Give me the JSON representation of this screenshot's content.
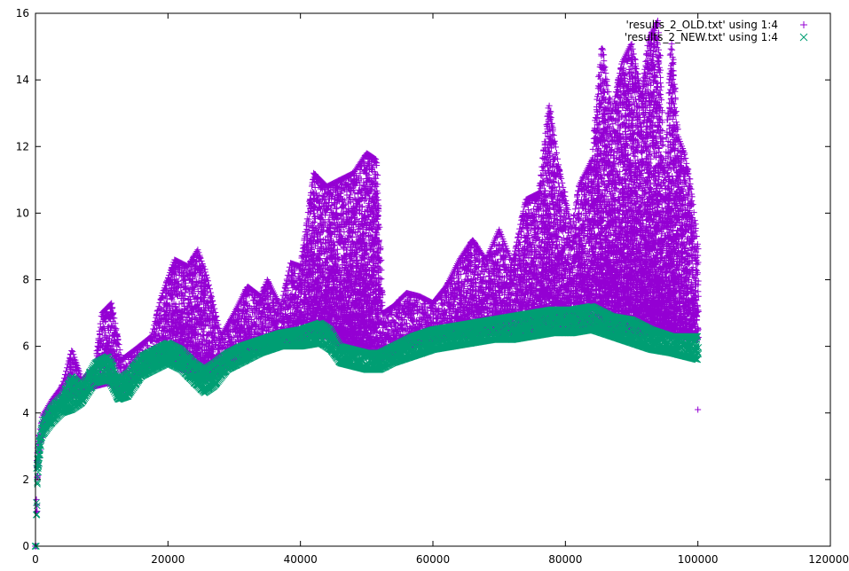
{
  "chart_data": {
    "type": "scatter",
    "title": "",
    "xlabel": "",
    "ylabel": "",
    "xlim": [
      0,
      120000
    ],
    "ylim": [
      0,
      16
    ],
    "x_ticks": [
      0,
      20000,
      40000,
      60000,
      80000,
      100000,
      120000
    ],
    "x_tick_labels": [
      "0",
      "20000",
      "40000",
      "60000",
      "80000",
      "100000",
      "120000"
    ],
    "y_ticks": [
      0,
      2,
      4,
      6,
      8,
      10,
      12,
      14,
      16
    ],
    "y_tick_labels": [
      "0",
      "2",
      "4",
      "6",
      "8",
      "10",
      "12",
      "14",
      "16"
    ],
    "grid": false,
    "legend_position": "top-right",
    "series": [
      {
        "name": "'results_2_OLD.txt' using 1:4",
        "marker": "plus",
        "color": "#9400d3",
        "low_envelope": [
          [
            0,
            0
          ],
          [
            300,
            2.2
          ],
          [
            1000,
            3.4
          ],
          [
            2500,
            4.0
          ],
          [
            4000,
            4.3
          ],
          [
            5500,
            4.5
          ],
          [
            7000,
            4.6
          ],
          [
            9000,
            4.8
          ],
          [
            11000,
            4.9
          ],
          [
            13000,
            4.6
          ],
          [
            15000,
            5.1
          ],
          [
            17500,
            5.5
          ],
          [
            20000,
            5.6
          ],
          [
            22000,
            5.3
          ],
          [
            24000,
            5.2
          ],
          [
            26000,
            5.0
          ],
          [
            28000,
            5.3
          ],
          [
            30000,
            5.6
          ],
          [
            33000,
            5.9
          ],
          [
            36000,
            6.0
          ],
          [
            39000,
            6.2
          ],
          [
            42000,
            6.3
          ],
          [
            44000,
            6.3
          ],
          [
            46000,
            6.0
          ],
          [
            48000,
            6.0
          ],
          [
            50000,
            5.8
          ],
          [
            52000,
            5.6
          ],
          [
            55000,
            5.9
          ],
          [
            58000,
            6.1
          ],
          [
            61000,
            6.2
          ],
          [
            64000,
            6.3
          ],
          [
            67000,
            6.4
          ],
          [
            70000,
            6.4
          ],
          [
            73000,
            6.4
          ],
          [
            76000,
            6.4
          ],
          [
            79000,
            6.5
          ],
          [
            82000,
            6.5
          ],
          [
            85000,
            6.5
          ],
          [
            88000,
            6.4
          ],
          [
            91000,
            6.4
          ],
          [
            94000,
            6.4
          ],
          [
            97000,
            6.3
          ],
          [
            100000,
            6.2
          ]
        ],
        "high_envelope": [
          [
            0,
            0
          ],
          [
            300,
            3.0
          ],
          [
            1000,
            3.9
          ],
          [
            2500,
            4.4
          ],
          [
            4000,
            4.8
          ],
          [
            5500,
            5.9
          ],
          [
            7000,
            5.0
          ],
          [
            9000,
            5.4
          ],
          [
            10000,
            7.0
          ],
          [
            11500,
            7.3
          ],
          [
            13000,
            5.6
          ],
          [
            15000,
            5.9
          ],
          [
            17500,
            6.3
          ],
          [
            19000,
            7.5
          ],
          [
            21000,
            8.6
          ],
          [
            23000,
            8.4
          ],
          [
            24500,
            8.9
          ],
          [
            26000,
            8.0
          ],
          [
            28000,
            6.3
          ],
          [
            30000,
            7.0
          ],
          [
            32000,
            7.8
          ],
          [
            34000,
            7.5
          ],
          [
            35000,
            8.0
          ],
          [
            37000,
            7.2
          ],
          [
            38500,
            8.5
          ],
          [
            40000,
            8.4
          ],
          [
            42000,
            11.2
          ],
          [
            44000,
            10.8
          ],
          [
            46000,
            11.0
          ],
          [
            48000,
            11.2
          ],
          [
            50000,
            11.8
          ],
          [
            51500,
            11.6
          ],
          [
            52500,
            7.0
          ],
          [
            54000,
            7.2
          ],
          [
            56000,
            7.6
          ],
          [
            58000,
            7.5
          ],
          [
            60000,
            7.3
          ],
          [
            62000,
            7.8
          ],
          [
            64000,
            8.6
          ],
          [
            66000,
            9.2
          ],
          [
            68000,
            8.6
          ],
          [
            70000,
            9.5
          ],
          [
            72000,
            8.5
          ],
          [
            74000,
            10.4
          ],
          [
            76000,
            10.6
          ],
          [
            77500,
            13.3
          ],
          [
            79000,
            11.4
          ],
          [
            81000,
            9.5
          ],
          [
            82000,
            10.8
          ],
          [
            84000,
            11.6
          ],
          [
            85500,
            15.0
          ],
          [
            87000,
            13.0
          ],
          [
            88500,
            14.5
          ],
          [
            90000,
            15.1
          ],
          [
            91500,
            13.5
          ],
          [
            92500,
            15.2
          ],
          [
            94000,
            15.8
          ],
          [
            95000,
            11.0
          ],
          [
            96000,
            15.2
          ],
          [
            97000,
            12.3
          ],
          [
            98000,
            11.8
          ],
          [
            99000,
            10.7
          ],
          [
            100000,
            9.0
          ]
        ],
        "outlier_points": [
          [
            100000,
            4.1
          ]
        ]
      },
      {
        "name": "'results_2_NEW.txt' using 1:4",
        "marker": "cross",
        "color": "#009e73",
        "low_envelope": [
          [
            0,
            0
          ],
          [
            300,
            2.0
          ],
          [
            1000,
            3.3
          ],
          [
            2500,
            3.7
          ],
          [
            4000,
            4.0
          ],
          [
            5500,
            4.1
          ],
          [
            7000,
            4.3
          ],
          [
            9000,
            4.9
          ],
          [
            11000,
            5.0
          ],
          [
            12500,
            4.4
          ],
          [
            14000,
            4.5
          ],
          [
            16000,
            5.1
          ],
          [
            18000,
            5.3
          ],
          [
            20000,
            5.5
          ],
          [
            22000,
            5.3
          ],
          [
            24000,
            4.9
          ],
          [
            25500,
            4.6
          ],
          [
            27000,
            4.8
          ],
          [
            29000,
            5.3
          ],
          [
            31000,
            5.5
          ],
          [
            34000,
            5.8
          ],
          [
            37000,
            6.0
          ],
          [
            40000,
            6.0
          ],
          [
            43000,
            6.1
          ],
          [
            44500,
            5.9
          ],
          [
            46000,
            5.5
          ],
          [
            48000,
            5.4
          ],
          [
            50000,
            5.3
          ],
          [
            52000,
            5.3
          ],
          [
            54000,
            5.5
          ],
          [
            57000,
            5.7
          ],
          [
            60000,
            5.9
          ],
          [
            63000,
            6.0
          ],
          [
            66000,
            6.1
          ],
          [
            69000,
            6.2
          ],
          [
            72000,
            6.2
          ],
          [
            75000,
            6.3
          ],
          [
            78000,
            6.4
          ],
          [
            81000,
            6.4
          ],
          [
            84000,
            6.5
          ],
          [
            87000,
            6.3
          ],
          [
            90000,
            6.1
          ],
          [
            93000,
            5.9
          ],
          [
            96000,
            5.8
          ],
          [
            100000,
            5.6
          ]
        ],
        "high_envelope": [
          [
            0,
            0
          ],
          [
            300,
            2.8
          ],
          [
            1000,
            3.7
          ],
          [
            2500,
            4.2
          ],
          [
            4000,
            4.5
          ],
          [
            5500,
            5.1
          ],
          [
            7000,
            4.8
          ],
          [
            9000,
            5.5
          ],
          [
            11000,
            5.7
          ],
          [
            12500,
            5.0
          ],
          [
            14000,
            5.2
          ],
          [
            16000,
            5.7
          ],
          [
            18000,
            5.9
          ],
          [
            20000,
            6.1
          ],
          [
            22000,
            5.9
          ],
          [
            24000,
            5.5
          ],
          [
            25500,
            5.3
          ],
          [
            27000,
            5.5
          ],
          [
            29000,
            5.8
          ],
          [
            31000,
            6.0
          ],
          [
            34000,
            6.2
          ],
          [
            37000,
            6.4
          ],
          [
            40000,
            6.5
          ],
          [
            43000,
            6.7
          ],
          [
            44500,
            6.5
          ],
          [
            46000,
            6.0
          ],
          [
            48000,
            5.9
          ],
          [
            50000,
            5.8
          ],
          [
            52000,
            5.8
          ],
          [
            54000,
            6.0
          ],
          [
            57000,
            6.3
          ],
          [
            60000,
            6.5
          ],
          [
            63000,
            6.6
          ],
          [
            66000,
            6.7
          ],
          [
            69000,
            6.8
          ],
          [
            72000,
            6.9
          ],
          [
            75000,
            7.0
          ],
          [
            78000,
            7.1
          ],
          [
            81000,
            7.1
          ],
          [
            84000,
            7.2
          ],
          [
            87000,
            6.9
          ],
          [
            90000,
            6.8
          ],
          [
            93000,
            6.5
          ],
          [
            96000,
            6.3
          ],
          [
            100000,
            6.3
          ]
        ],
        "outlier_points": []
      }
    ]
  }
}
